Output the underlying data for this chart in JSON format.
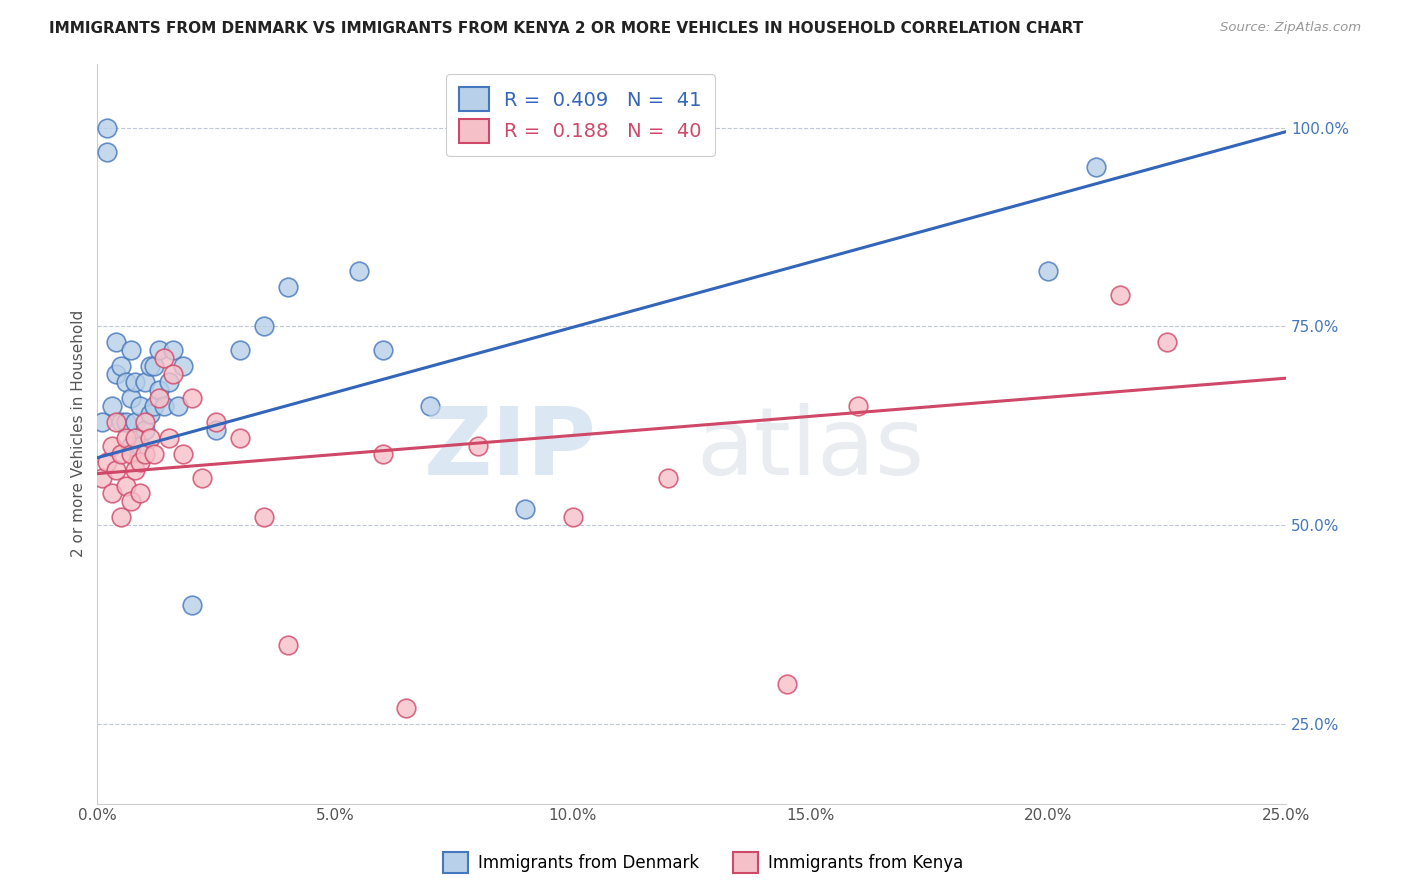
{
  "title": "IMMIGRANTS FROM DENMARK VS IMMIGRANTS FROM KENYA 2 OR MORE VEHICLES IN HOUSEHOLD CORRELATION CHART",
  "source": "Source: ZipAtlas.com",
  "ylabel": "2 or more Vehicles in Household",
  "xlim": [
    0.0,
    0.25
  ],
  "ylim": [
    0.15,
    1.08
  ],
  "xtick_labels": [
    "0.0%",
    "5.0%",
    "10.0%",
    "15.0%",
    "20.0%",
    "25.0%"
  ],
  "xtick_vals": [
    0.0,
    0.05,
    0.1,
    0.15,
    0.2,
    0.25
  ],
  "ytick_labels": [
    "25.0%",
    "50.0%",
    "75.0%",
    "100.0%"
  ],
  "ytick_vals": [
    0.25,
    0.5,
    0.75,
    1.0
  ],
  "blue_color": "#b8d0e8",
  "blue_edge_color": "#4477bb",
  "blue_line_color": "#3366bb",
  "pink_color": "#f5c0c8",
  "pink_edge_color": "#d04868",
  "pink_line_color": "#d04868",
  "blue_R": 0.409,
  "blue_N": 41,
  "pink_R": 0.188,
  "pink_N": 40,
  "blue_scatter_x": [
    0.001,
    0.002,
    0.002,
    0.003,
    0.004,
    0.004,
    0.005,
    0.005,
    0.006,
    0.006,
    0.007,
    0.007,
    0.007,
    0.008,
    0.008,
    0.009,
    0.009,
    0.01,
    0.01,
    0.011,
    0.011,
    0.012,
    0.012,
    0.013,
    0.013,
    0.014,
    0.015,
    0.016,
    0.017,
    0.018,
    0.02,
    0.025,
    0.03,
    0.035,
    0.04,
    0.055,
    0.06,
    0.07,
    0.09,
    0.2,
    0.21
  ],
  "blue_scatter_y": [
    0.63,
    0.97,
    1.0,
    0.65,
    0.73,
    0.69,
    0.63,
    0.7,
    0.68,
    0.63,
    0.66,
    0.6,
    0.72,
    0.63,
    0.68,
    0.6,
    0.65,
    0.62,
    0.68,
    0.64,
    0.7,
    0.65,
    0.7,
    0.67,
    0.72,
    0.65,
    0.68,
    0.72,
    0.65,
    0.7,
    0.4,
    0.62,
    0.72,
    0.75,
    0.8,
    0.82,
    0.72,
    0.65,
    0.52,
    0.82,
    0.95
  ],
  "pink_scatter_x": [
    0.001,
    0.002,
    0.003,
    0.003,
    0.004,
    0.004,
    0.005,
    0.005,
    0.006,
    0.006,
    0.007,
    0.007,
    0.008,
    0.008,
    0.009,
    0.009,
    0.01,
    0.01,
    0.011,
    0.012,
    0.013,
    0.014,
    0.015,
    0.016,
    0.018,
    0.02,
    0.022,
    0.025,
    0.03,
    0.035,
    0.04,
    0.06,
    0.065,
    0.08,
    0.1,
    0.12,
    0.145,
    0.16,
    0.215,
    0.225
  ],
  "pink_scatter_y": [
    0.56,
    0.58,
    0.54,
    0.6,
    0.57,
    0.63,
    0.51,
    0.59,
    0.55,
    0.61,
    0.53,
    0.59,
    0.57,
    0.61,
    0.54,
    0.58,
    0.59,
    0.63,
    0.61,
    0.59,
    0.66,
    0.71,
    0.61,
    0.69,
    0.59,
    0.66,
    0.56,
    0.63,
    0.61,
    0.51,
    0.35,
    0.59,
    0.27,
    0.6,
    0.51,
    0.56,
    0.3,
    0.65,
    0.79,
    0.73
  ],
  "blue_line_x0": 0.0,
  "blue_line_y0": 0.585,
  "blue_line_x1": 0.25,
  "blue_line_y1": 0.995,
  "pink_line_x0": 0.0,
  "pink_line_y0": 0.565,
  "pink_line_x1": 0.25,
  "pink_line_y1": 0.685
}
